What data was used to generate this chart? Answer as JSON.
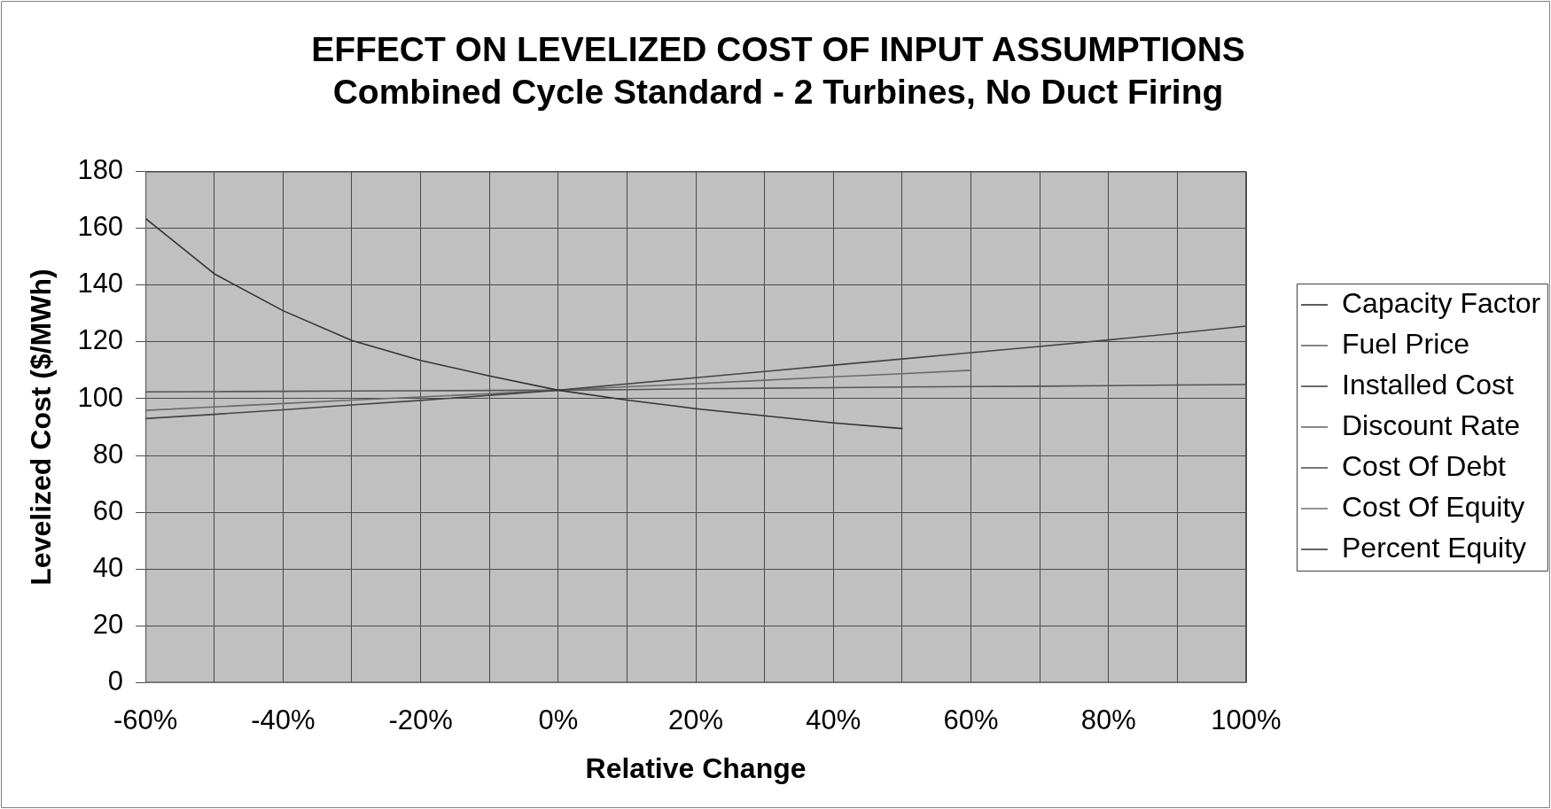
{
  "chart_data": {
    "type": "line",
    "title": "EFFECT ON LEVELIZED COST OF INPUT ASSUMPTIONS",
    "subtitle": "Combined Cycle Standard - 2 Turbines, No Duct Firing",
    "xlabel": "Relative Change",
    "ylabel": "Levelized Cost ($/MWh)",
    "x": [
      -60,
      -50,
      -40,
      -30,
      -20,
      -10,
      0,
      10,
      20,
      30,
      40,
      50,
      60,
      70,
      80,
      90,
      100
    ],
    "series": [
      {
        "name": "Capacity Factor",
        "color": "#333333",
        "values": [
          163.5,
          144,
          131,
          120.5,
          113.5,
          108,
          103,
          99.5,
          96.5,
          94,
          91.5,
          89.5,
          null,
          null,
          null,
          null,
          null
        ]
      },
      {
        "name": "Fuel Price",
        "color": "#666666",
        "values": [
          null,
          null,
          null,
          null,
          null,
          null,
          null,
          null,
          null,
          null,
          null,
          null,
          null,
          null,
          null,
          null,
          null
        ]
      },
      {
        "name": "Installed Cost",
        "color": "#444444",
        "values": [
          93,
          94.5,
          96.1,
          97.8,
          99.4,
          101.2,
          103,
          105.2,
          107.4,
          109.6,
          111.8,
          114,
          116.2,
          118.4,
          120.7,
          123.1,
          125.6
        ]
      },
      {
        "name": "Discount Rate",
        "color": "#6a6a6a",
        "values": [
          95.9,
          97.1,
          98.3,
          99.5,
          100.6,
          101.8,
          103,
          104.2,
          105.3,
          106.5,
          107.7,
          108.8,
          110,
          null,
          null,
          null,
          null
        ]
      },
      {
        "name": "Cost Of Debt",
        "color": "#555555",
        "values": [
          102.4,
          102.5,
          102.6,
          102.7,
          102.8,
          102.9,
          103,
          103.2,
          103.5,
          103.7,
          103.9,
          104.1,
          104.3,
          104.4,
          104.6,
          104.8,
          105
        ]
      },
      {
        "name": "Cost Of Equity",
        "color": "#777777",
        "values": [
          null,
          null,
          null,
          null,
          null,
          null,
          null,
          null,
          null,
          null,
          null,
          null,
          null,
          null,
          null,
          null,
          null
        ]
      },
      {
        "name": "Percent Equity",
        "color": "#3a3a3a",
        "values": [
          null,
          null,
          null,
          null,
          null,
          null,
          null,
          null,
          null,
          null,
          null,
          null,
          null,
          null,
          null,
          null,
          null
        ]
      }
    ],
    "xlim": [
      -60,
      100
    ],
    "xticks": [
      {
        "value": -60,
        "label": "-60%"
      },
      {
        "value": -50,
        "label": null
      },
      {
        "value": -40,
        "label": "-40%"
      },
      {
        "value": -30,
        "label": null
      },
      {
        "value": -20,
        "label": "-20%"
      },
      {
        "value": -10,
        "label": null
      },
      {
        "value": 0,
        "label": "0%"
      },
      {
        "value": 10,
        "label": null
      },
      {
        "value": 20,
        "label": "20%"
      },
      {
        "value": 30,
        "label": null
      },
      {
        "value": 40,
        "label": "40%"
      },
      {
        "value": 50,
        "label": null
      },
      {
        "value": 60,
        "label": "60%"
      },
      {
        "value": 70,
        "label": null
      },
      {
        "value": 80,
        "label": "80%"
      },
      {
        "value": 90,
        "label": null
      },
      {
        "value": 100,
        "label": "100%"
      }
    ],
    "ylim": [
      0,
      180
    ],
    "yticks": [
      0,
      20,
      40,
      60,
      80,
      100,
      120,
      140,
      160,
      180
    ],
    "grid": true,
    "legend": "right",
    "marker": "none"
  }
}
